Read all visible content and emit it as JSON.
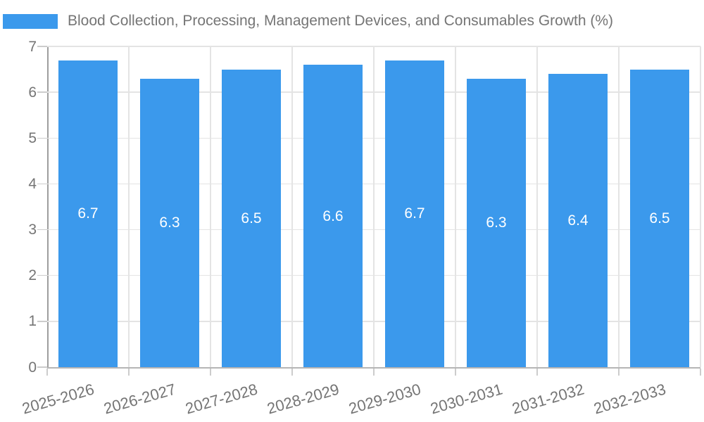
{
  "chart_data": {
    "type": "bar",
    "title": "Blood Collection, Processing, Management Devices, and Consumables Growth (%)",
    "categories": [
      "2025-2026",
      "2026-2027",
      "2027-2028",
      "2028-2029",
      "2029-2030",
      "2030-2031",
      "2031-2032",
      "2032-2033"
    ],
    "values": [
      6.7,
      6.3,
      6.5,
      6.6,
      6.7,
      6.3,
      6.4,
      6.5
    ],
    "value_labels": [
      "6.7",
      "6.3",
      "6.5",
      "6.6",
      "6.7",
      "6.3",
      "6.4",
      "6.5"
    ],
    "xlabel": "",
    "ylabel": "",
    "ylim": [
      0,
      7
    ],
    "yticks": [
      0,
      1,
      2,
      3,
      4,
      5,
      6,
      7
    ],
    "grid": true,
    "legend_position": "top-left",
    "colors": {
      "bar": "#3b99ec",
      "bar_label": "#ffffff",
      "axis_text": "#757575",
      "gridline": "#e4e4e4",
      "axis_line_y": "#9e9e9e",
      "axis_line_x": "#b5b5b5",
      "tick": "#cccccc"
    }
  }
}
